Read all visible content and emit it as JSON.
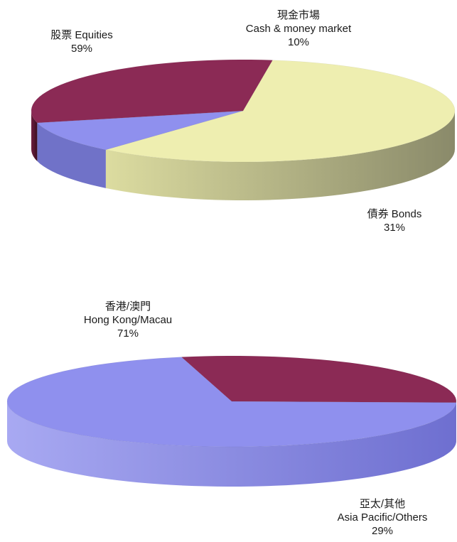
{
  "chart_data": [
    {
      "type": "pie",
      "title": "",
      "slices": [
        {
          "label_zh": "股票",
          "label_en": "Equities",
          "value": 59,
          "pct_text": "59%",
          "color": "#eeeeb0"
        },
        {
          "label_zh": "現金市場",
          "label_en": "Cash & money market",
          "value": 10,
          "pct_text": "10%",
          "color": "#8f90ee"
        },
        {
          "label_zh": "債券",
          "label_en": "Bonds",
          "value": 31,
          "pct_text": "31%",
          "color": "#8b2a55"
        }
      ],
      "style": "3d"
    },
    {
      "type": "pie",
      "title": "",
      "slices": [
        {
          "label_zh": "香港/澳門",
          "label_en": "Hong Kong/Macau",
          "value": 71,
          "pct_text": "71%",
          "color": "#8f90ee"
        },
        {
          "label_zh": "亞太/其他",
          "label_en": "Asia Pacific/Others",
          "value": 29,
          "pct_text": "29%",
          "color": "#8b2a55"
        }
      ],
      "style": "3d"
    }
  ],
  "labels": {
    "equities": {
      "line1": "股票 Equities",
      "line2": "59%"
    },
    "cash": {
      "line1": "現金市場",
      "line2": "Cash & money market",
      "line3": "10%"
    },
    "bonds": {
      "line1": "債券 Bonds",
      "line2": "31%"
    },
    "hk": {
      "line1": "香港/澳門",
      "line2": "Hong Kong/Macau",
      "line3": "71%"
    },
    "asia": {
      "line1": "亞太/其他",
      "line2": "Asia Pacific/Others",
      "line3": "29%"
    }
  }
}
